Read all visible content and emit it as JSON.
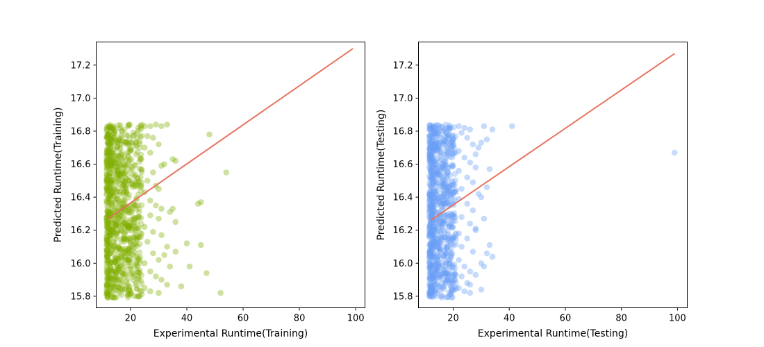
{
  "chart_data": [
    {
      "type": "scatter",
      "title": "",
      "xlabel": "Experimental Runtime(Training)",
      "ylabel": "Predicted Runtime(Training)",
      "xlim": [
        7.8,
        103.3
      ],
      "ylim": [
        15.73,
        17.34
      ],
      "xticks": [
        20,
        40,
        60,
        80,
        100
      ],
      "yticks": [
        15.8,
        16.0,
        16.2,
        16.4,
        16.6,
        16.8,
        17.0,
        17.2
      ],
      "grid": false,
      "point_color": "#7faf00",
      "line_color": "#e8735f",
      "fit_line": {
        "x": [
          12,
          99
        ],
        "y": [
          16.27,
          17.3
        ]
      },
      "dense_band": {
        "x": [
          11.5,
          24
        ],
        "y": [
          15.79,
          16.84
        ]
      },
      "points": [
        [
          25,
          16.83
        ],
        [
          27,
          16.83
        ],
        [
          29,
          16.84
        ],
        [
          31,
          16.83
        ],
        [
          33,
          16.84
        ],
        [
          26,
          16.77
        ],
        [
          28,
          16.76
        ],
        [
          30,
          16.72
        ],
        [
          25,
          16.7
        ],
        [
          27,
          16.67
        ],
        [
          31,
          16.59
        ],
        [
          32,
          16.6
        ],
        [
          35,
          16.63
        ],
        [
          36,
          16.62
        ],
        [
          28,
          16.55
        ],
        [
          26,
          16.5
        ],
        [
          29,
          16.47
        ],
        [
          30,
          16.45
        ],
        [
          25,
          16.43
        ],
        [
          27,
          16.38
        ],
        [
          29,
          16.35
        ],
        [
          31,
          16.33
        ],
        [
          34,
          16.31
        ],
        [
          35,
          16.33
        ],
        [
          36,
          16.25
        ],
        [
          27,
          16.29
        ],
        [
          30,
          16.27
        ],
        [
          25,
          16.22
        ],
        [
          28,
          16.19
        ],
        [
          31,
          16.17
        ],
        [
          26,
          16.13
        ],
        [
          33,
          16.1
        ],
        [
          36,
          16.07
        ],
        [
          28,
          16.06
        ],
        [
          30,
          16.02
        ],
        [
          25,
          16.0
        ],
        [
          32,
          16.05
        ],
        [
          34,
          15.98
        ],
        [
          27,
          15.95
        ],
        [
          29,
          15.92
        ],
        [
          31,
          15.9
        ],
        [
          33,
          15.87
        ],
        [
          25,
          15.85
        ],
        [
          27,
          15.83
        ],
        [
          30,
          15.82
        ],
        [
          48,
          16.78
        ],
        [
          54,
          16.55
        ],
        [
          44,
          16.36
        ],
        [
          45,
          16.37
        ],
        [
          45,
          16.11
        ],
        [
          41,
          15.98
        ],
        [
          47,
          15.94
        ],
        [
          38,
          15.86
        ],
        [
          52,
          15.82
        ],
        [
          40,
          16.12
        ]
      ]
    },
    {
      "type": "scatter",
      "title": "",
      "xlabel": "Experimental Runtime(Testing)",
      "ylabel": "Predicted Runtime(Testing)",
      "xlim": [
        7.6,
        103.5
      ],
      "ylim": [
        15.73,
        17.34
      ],
      "xticks": [
        20,
        40,
        60,
        80,
        100
      ],
      "yticks": [
        15.8,
        16.0,
        16.2,
        16.4,
        16.6,
        16.8,
        17.0,
        17.2
      ],
      "grid": false,
      "point_color": "#6aa0f7",
      "line_color": "#e8735f",
      "fit_line": {
        "x": [
          12,
          99
        ],
        "y": [
          16.26,
          17.27
        ]
      },
      "dense_band": {
        "x": [
          11.5,
          21
        ],
        "y": [
          15.79,
          16.84
        ]
      },
      "points": [
        [
          22,
          16.83
        ],
        [
          24,
          16.82
        ],
        [
          26,
          16.81
        ],
        [
          23,
          16.79
        ],
        [
          25,
          16.76
        ],
        [
          27,
          16.72
        ],
        [
          29,
          16.7
        ],
        [
          22,
          16.68
        ],
        [
          24,
          16.64
        ],
        [
          26,
          16.61
        ],
        [
          28,
          16.58
        ],
        [
          22,
          16.56
        ],
        [
          25,
          16.52
        ],
        [
          27,
          16.49
        ],
        [
          23,
          16.45
        ],
        [
          29,
          16.42
        ],
        [
          22,
          16.39
        ],
        [
          25,
          16.36
        ],
        [
          27,
          16.32
        ],
        [
          23,
          16.28
        ],
        [
          26,
          16.24
        ],
        [
          28,
          16.21
        ],
        [
          22,
          16.18
        ],
        [
          25,
          16.15
        ],
        [
          23,
          16.1
        ],
        [
          27,
          16.07
        ],
        [
          22,
          16.02
        ],
        [
          24,
          15.98
        ],
        [
          26,
          15.95
        ],
        [
          23,
          15.92
        ],
        [
          25,
          15.88
        ],
        [
          22,
          15.85
        ],
        [
          24,
          15.83
        ],
        [
          26,
          15.82
        ],
        [
          31,
          16.83
        ],
        [
          34,
          16.81
        ],
        [
          41,
          16.83
        ],
        [
          32,
          16.75
        ],
        [
          30,
          16.73
        ],
        [
          28,
          16.66
        ],
        [
          33,
          16.57
        ],
        [
          32,
          16.46
        ],
        [
          30,
          16.4
        ],
        [
          31,
          16.27
        ],
        [
          28,
          16.2
        ],
        [
          33,
          16.11
        ],
        [
          34,
          16.04
        ],
        [
          32,
          16.06
        ],
        [
          30,
          16.0
        ],
        [
          31,
          15.98
        ],
        [
          28,
          15.93
        ],
        [
          30,
          15.84
        ],
        [
          26,
          15.87
        ],
        [
          99,
          16.67
        ]
      ]
    }
  ]
}
